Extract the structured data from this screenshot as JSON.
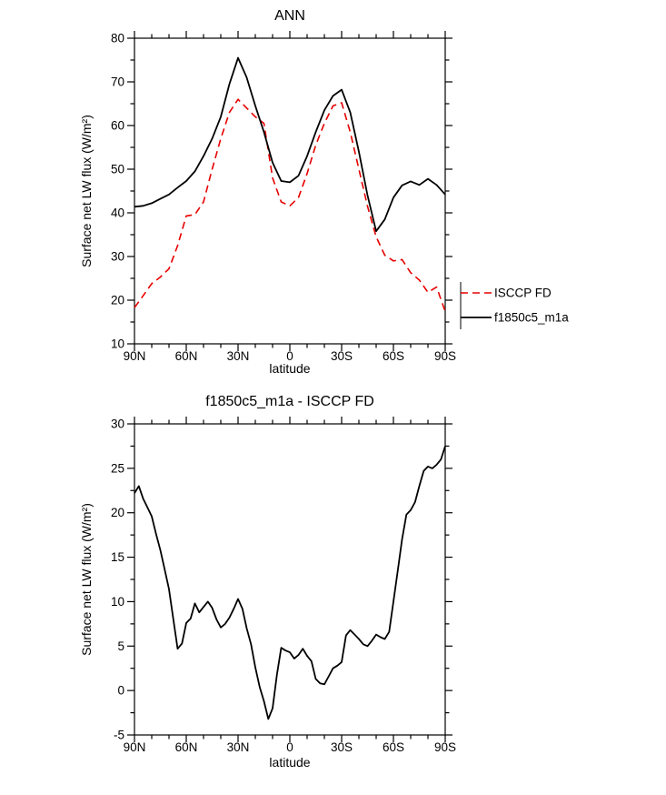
{
  "page": {
    "background": "#ffffff",
    "axis_color": "#000000"
  },
  "chart_data": [
    {
      "id": "ann-line-chart",
      "type": "line",
      "title": "ANN",
      "xlabel": "latitude",
      "ylabel": "Surface net LW flux (W/m²)",
      "xlim": [
        90,
        -90
      ],
      "ylim": [
        10,
        80
      ],
      "grid": false,
      "x_ticks": {
        "values": [
          90,
          60,
          30,
          0,
          -30,
          -60,
          -90
        ],
        "labels": [
          "90N",
          "60N",
          "30N",
          "0",
          "30S",
          "60S",
          "90S"
        ],
        "minor_step": 10
      },
      "y_ticks": {
        "values": [
          10,
          20,
          30,
          40,
          50,
          60,
          70,
          80
        ],
        "labels": [
          "10",
          "20",
          "30",
          "40",
          "50",
          "60",
          "70",
          "80"
        ],
        "minor_step": 5
      },
      "x": [
        90,
        85,
        80,
        75,
        70,
        65,
        60,
        55,
        50,
        45,
        40,
        35,
        30,
        25,
        20,
        15,
        10,
        5,
        0,
        -5,
        -10,
        -15,
        -20,
        -25,
        -30,
        -35,
        -40,
        -45,
        -50,
        -55,
        -60,
        -65,
        -70,
        -75,
        -80,
        -85,
        -90
      ],
      "series": [
        {
          "name": "ISCCP FD",
          "color": "#e60000",
          "width": 1.6,
          "dash": [
            8,
            5
          ],
          "values": [
            18.3,
            21.0,
            23.8,
            25.3,
            27.2,
            32.5,
            39.3,
            39.6,
            42.5,
            50.0,
            57.0,
            63.0,
            66.0,
            64.0,
            62.0,
            60.5,
            48.0,
            42.5,
            41.6,
            43.5,
            49.0,
            55.5,
            60.5,
            64.5,
            65.2,
            58.5,
            50.0,
            41.5,
            34.5,
            30.3,
            29.0,
            29.3,
            26.3,
            24.6,
            21.8,
            23.0,
            17.4
          ]
        },
        {
          "name": "f1850c5_m1a",
          "color": "#000000",
          "width": 1.8,
          "dash": null,
          "values": [
            41.4,
            41.6,
            42.2,
            43.2,
            44.2,
            45.8,
            47.3,
            49.5,
            53.0,
            57.0,
            62.0,
            69.5,
            75.5,
            71.0,
            64.5,
            58.5,
            51.5,
            47.3,
            47.0,
            48.5,
            53.0,
            58.5,
            63.5,
            66.8,
            68.2,
            63.0,
            54.0,
            44.0,
            35.8,
            38.5,
            43.5,
            46.3,
            47.2,
            46.4,
            47.8,
            46.4,
            44.2
          ]
        }
      ],
      "legend": {
        "position": "right-outside",
        "entries": [
          "ISCCP FD",
          "f1850c5_m1a"
        ]
      }
    },
    {
      "id": "diff-line-chart",
      "type": "line",
      "title": "f1850c5_m1a - ISCCP FD",
      "xlabel": "latitude",
      "ylabel": "Surface net LW flux (W/m²)",
      "xlim": [
        90,
        -90
      ],
      "ylim": [
        -5,
        30
      ],
      "grid": false,
      "x_ticks": {
        "values": [
          90,
          60,
          30,
          0,
          -30,
          -60,
          -90
        ],
        "labels": [
          "90N",
          "60N",
          "30N",
          "0",
          "30S",
          "60S",
          "90S"
        ],
        "minor_step": 10
      },
      "y_ticks": {
        "values": [
          -5,
          0,
          5,
          10,
          15,
          20,
          25,
          30
        ],
        "labels": [
          "-5",
          "0",
          "5",
          "10",
          "15",
          "20",
          "25",
          "30"
        ],
        "minor_step": 2.5
      },
      "x": [
        90,
        87.5,
        85,
        82.5,
        80,
        77.5,
        75,
        72.5,
        70,
        67.5,
        65,
        62.5,
        60,
        57.5,
        55,
        52.5,
        50,
        47.5,
        45,
        42.5,
        40,
        37.5,
        35,
        32.5,
        30,
        27.5,
        25,
        22.5,
        20,
        17.5,
        15,
        12.5,
        10,
        7.5,
        5,
        2.5,
        0,
        -2.5,
        -5,
        -7.5,
        -10,
        -12.5,
        -15,
        -17.5,
        -20,
        -22.5,
        -25,
        -27.5,
        -30,
        -32.5,
        -35,
        -37.5,
        -40,
        -42.5,
        -45,
        -47.5,
        -50,
        -52.5,
        -55,
        -57.5,
        -60,
        -62.5,
        -65,
        -67.5,
        -70,
        -72.5,
        -75,
        -77.5,
        -80,
        -82.5,
        -85,
        -87.5,
        -90
      ],
      "series": [
        {
          "name": "f1850c5_m1a - ISCCP FD",
          "color": "#000000",
          "width": 1.8,
          "dash": null,
          "values": [
            22.2,
            23.0,
            21.6,
            20.6,
            19.6,
            17.6,
            15.8,
            13.6,
            11.4,
            8.0,
            4.7,
            5.3,
            7.6,
            8.1,
            9.8,
            8.8,
            9.4,
            10.0,
            9.3,
            8.0,
            7.1,
            7.5,
            8.2,
            9.2,
            10.3,
            9.2,
            7.0,
            5.2,
            2.6,
            0.4,
            -1.2,
            -3.2,
            -2.0,
            1.8,
            4.8,
            4.5,
            4.3,
            3.6,
            4.0,
            4.7,
            3.9,
            3.3,
            1.3,
            0.8,
            0.7,
            1.6,
            2.5,
            2.8,
            3.2,
            6.2,
            6.8,
            6.3,
            5.8,
            5.2,
            5.0,
            5.6,
            6.3,
            6.0,
            5.8,
            6.6,
            10.0,
            13.5,
            17.0,
            19.8,
            20.3,
            21.2,
            23.0,
            24.7,
            25.2,
            25.0,
            25.4,
            26.0,
            27.5
          ]
        }
      ],
      "legend": null
    }
  ]
}
